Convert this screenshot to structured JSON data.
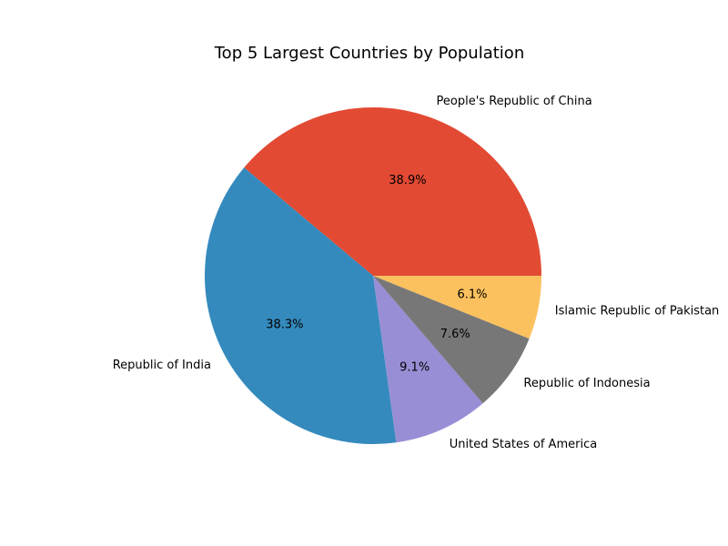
{
  "chart_data": {
    "type": "pie",
    "title": "Top 5 Largest Countries by Population",
    "categories": [
      "People's Republic of China",
      "Republic of India",
      "United States of America",
      "Republic of Indonesia",
      "Islamic Republic of Pakistan"
    ],
    "values": [
      38.9,
      38.3,
      9.1,
      7.6,
      6.1
    ],
    "percent_labels": [
      "38.9%",
      "38.3%",
      "9.1%",
      "7.6%",
      "6.1%"
    ],
    "colors": [
      "#E24A33",
      "#348ABD",
      "#988ED5",
      "#777777",
      "#FBC15E"
    ],
    "start_angle": 0,
    "direction": "counterclockwise"
  }
}
